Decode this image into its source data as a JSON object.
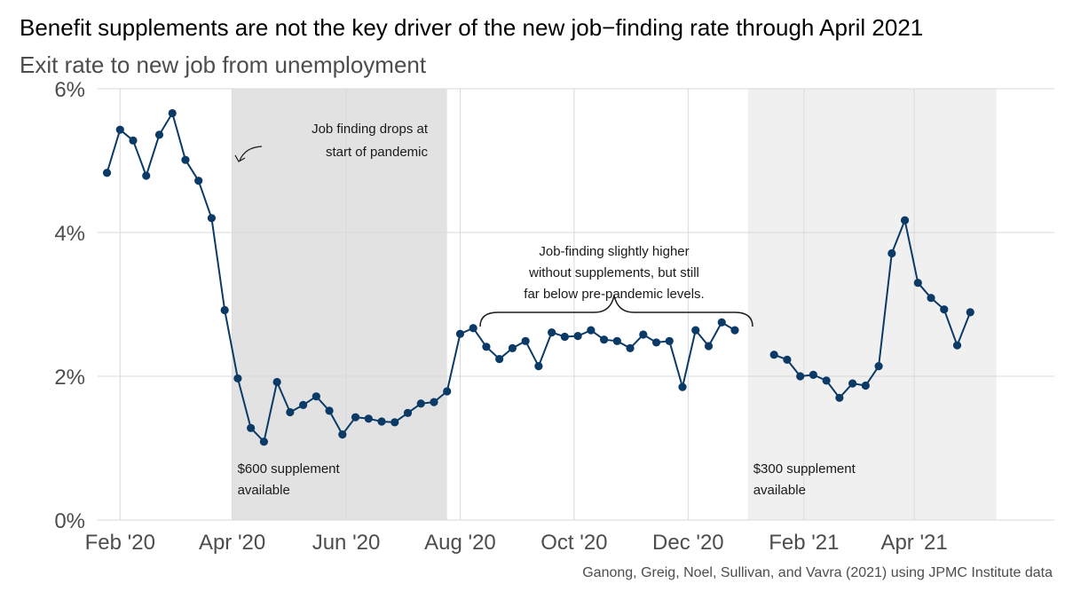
{
  "title": "Benefit supplements are not the key driver of the new job−finding rate through April 2021",
  "subtitle": "Exit rate to new job from unemployment",
  "source": "Ganong, Greig, Noel, Sullivan, and Vavra (2021) using JPMC Institute data",
  "colors": {
    "line": "#0b3a66",
    "shade_600": "#e2e2e2",
    "shade_300": "#f0f0f0",
    "grid": "#d9d9d9"
  },
  "chart_data": {
    "type": "line",
    "x_unit": "week",
    "y_unit": "percent",
    "ylim": [
      0,
      6
    ],
    "y_ticks": [
      {
        "value": 0,
        "label": "0%"
      },
      {
        "value": 2,
        "label": "2%"
      },
      {
        "value": 4,
        "label": "4%"
      },
      {
        "value": 6,
        "label": "6%"
      }
    ],
    "xlim": [
      "2020-01-20",
      "2021-06-15"
    ],
    "x_ticks": [
      {
        "date": "2020-02-01",
        "label": "Feb '20"
      },
      {
        "date": "2020-04-01",
        "label": "Apr '20"
      },
      {
        "date": "2020-06-01",
        "label": "Jun '20"
      },
      {
        "date": "2020-08-01",
        "label": "Aug '20"
      },
      {
        "date": "2020-10-01",
        "label": "Oct '20"
      },
      {
        "date": "2020-12-01",
        "label": "Dec '20"
      },
      {
        "date": "2021-02-01",
        "label": "Feb '21"
      },
      {
        "date": "2021-04-01",
        "label": "Apr '21"
      }
    ],
    "grid": true,
    "shaded_periods": [
      {
        "start": "2020-04-01",
        "end": "2020-07-25",
        "label": "$600 supplement available",
        "label_lines": [
          "$600 supplement",
          "available"
        ],
        "color": "#e2e2e2"
      },
      {
        "start": "2021-01-02",
        "end": "2021-05-15",
        "label": "$300 supplement available",
        "label_lines": [
          "$300 supplement",
          "available"
        ],
        "color": "#f0f0f0"
      }
    ],
    "segments": [
      {
        "x": [
          "2020-01-25",
          "2020-02-01",
          "2020-02-08",
          "2020-02-15",
          "2020-02-22",
          "2020-02-29",
          "2020-03-07",
          "2020-03-14",
          "2020-03-21",
          "2020-03-28",
          "2020-04-04",
          "2020-04-11",
          "2020-04-18",
          "2020-04-25",
          "2020-05-02",
          "2020-05-09",
          "2020-05-16",
          "2020-05-23",
          "2020-05-30",
          "2020-06-06",
          "2020-06-13",
          "2020-06-20",
          "2020-06-27",
          "2020-07-04",
          "2020-07-11",
          "2020-07-18",
          "2020-07-25",
          "2020-08-01",
          "2020-08-08",
          "2020-08-15",
          "2020-08-22",
          "2020-08-29",
          "2020-09-05",
          "2020-09-12",
          "2020-09-19",
          "2020-09-26",
          "2020-10-03",
          "2020-10-10",
          "2020-10-17",
          "2020-10-24",
          "2020-10-31",
          "2020-11-07",
          "2020-11-14",
          "2020-11-21",
          "2020-11-28",
          "2020-12-05",
          "2020-12-12",
          "2020-12-19",
          "2020-12-26"
        ],
        "y": [
          4.83,
          5.43,
          5.28,
          4.79,
          5.36,
          5.66,
          5.01,
          4.72,
          4.2,
          2.92,
          1.97,
          1.28,
          1.09,
          1.92,
          1.5,
          1.6,
          1.72,
          1.52,
          1.19,
          1.43,
          1.41,
          1.37,
          1.36,
          1.49,
          1.62,
          1.64,
          1.79,
          2.59,
          2.67,
          2.41,
          2.24,
          2.39,
          2.49,
          2.14,
          2.61,
          2.55,
          2.56,
          2.64,
          2.51,
          2.49,
          2.39,
          2.58,
          2.47,
          2.49,
          1.85,
          2.64,
          2.42,
          2.75,
          2.64
        ]
      },
      {
        "x": [
          "2021-01-16",
          "2021-01-23",
          "2021-01-30",
          "2021-02-06",
          "2021-02-13",
          "2021-02-20",
          "2021-02-27",
          "2021-03-06",
          "2021-03-13",
          "2021-03-20",
          "2021-03-27",
          "2021-04-03",
          "2021-04-10",
          "2021-04-17",
          "2021-04-24",
          "2021-05-01",
          "2021-05-08"
        ],
        "y": [
          2.3,
          2.23,
          2.0,
          2.02,
          1.94,
          1.7,
          1.9,
          1.87,
          2.14,
          3.71,
          4.17,
          3.3,
          3.09,
          2.93,
          2.43,
          2.89,
          null
        ]
      }
    ],
    "annotations": [
      {
        "text_lines": [
          "Job finding drops at",
          "start of pandemic"
        ],
        "text": "Job finding drops at start of pandemic"
      },
      {
        "text_lines": [
          "Job-finding slightly higher",
          "without supplements, but still",
          "far below pre-pandemic levels."
        ],
        "text": "Job-finding slightly higher without supplements, but still far below pre-pandemic levels."
      }
    ]
  }
}
